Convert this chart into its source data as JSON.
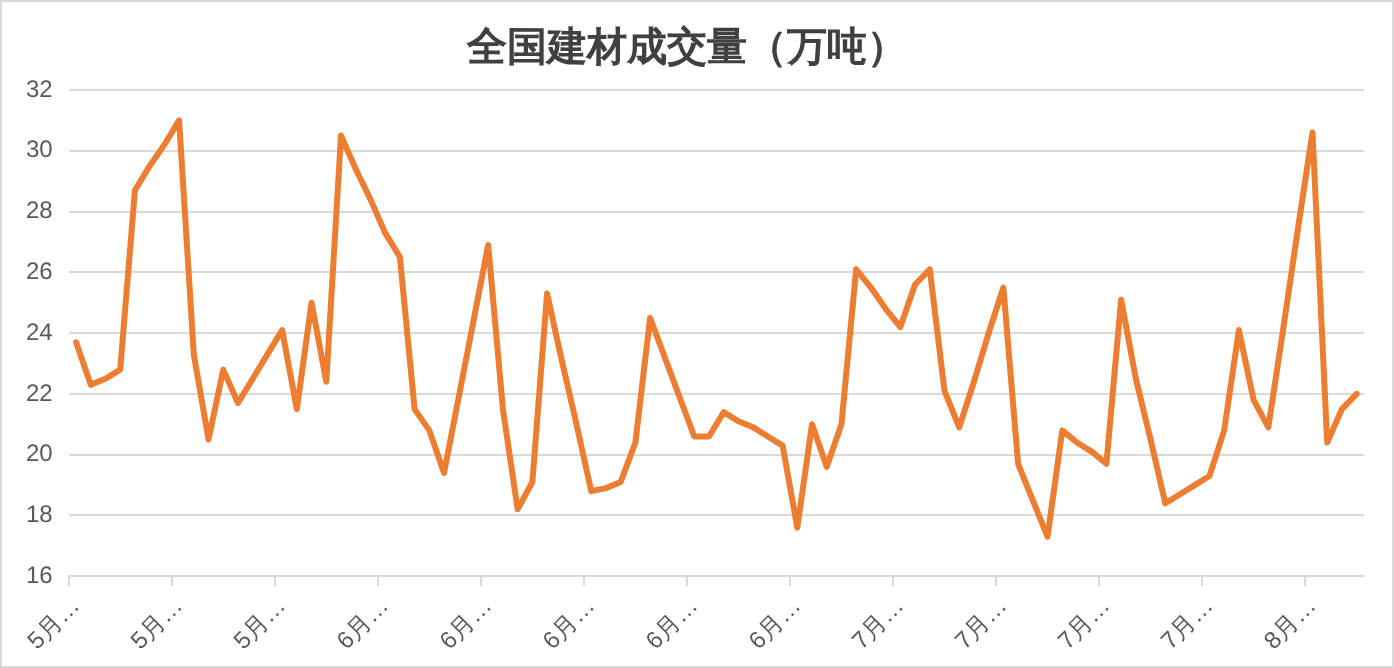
{
  "chart_data": {
    "type": "line",
    "title": "全国建材成交量（万吨）",
    "categories": [
      "5月…",
      null,
      null,
      null,
      null,
      null,
      null,
      "5月…",
      null,
      null,
      null,
      null,
      null,
      null,
      "5月…",
      null,
      null,
      null,
      null,
      null,
      null,
      "6月…",
      null,
      null,
      null,
      null,
      null,
      null,
      "6月…",
      null,
      null,
      null,
      null,
      null,
      null,
      "6月…",
      null,
      null,
      null,
      null,
      null,
      null,
      "6月…",
      null,
      null,
      null,
      null,
      null,
      null,
      "6月…",
      null,
      null,
      null,
      null,
      null,
      null,
      "7月…",
      null,
      null,
      null,
      null,
      null,
      null,
      "7月…",
      null,
      null,
      null,
      null,
      null,
      null,
      "7月…",
      null,
      null,
      null,
      null,
      null,
      null,
      "7月…",
      null,
      null,
      null,
      null,
      null,
      null,
      "8月…",
      null,
      null,
      null
    ],
    "series": [
      {
        "color": "#ed7d31",
        "values": [
          23.7,
          22.3,
          22.5,
          22.8,
          28.7,
          29.5,
          30.2,
          31.0,
          23.3,
          20.5,
          22.8,
          21.7,
          22.5,
          23.3,
          24.1,
          21.5,
          25.0,
          22.4,
          30.5,
          29.4,
          28.4,
          27.3,
          26.5,
          21.5,
          20.8,
          19.4,
          21.9,
          24.4,
          26.9,
          21.5,
          18.2,
          19.1,
          25.3,
          23.1,
          21.0,
          18.8,
          18.9,
          19.1,
          20.4,
          24.5,
          23.2,
          21.9,
          20.6,
          20.6,
          21.4,
          21.1,
          20.9,
          20.6,
          20.3,
          17.6,
          21.0,
          19.6,
          21.0,
          26.1,
          25.5,
          24.8,
          24.2,
          25.6,
          26.1,
          22.1,
          20.9,
          22.4,
          24.0,
          25.5,
          19.7,
          18.5,
          17.3,
          20.8,
          20.4,
          20.1,
          19.7,
          25.1,
          22.5,
          20.5,
          18.4,
          18.7,
          19.0,
          19.3,
          20.8,
          24.1,
          21.8,
          20.9,
          24.1,
          27.4,
          30.6,
          20.4,
          21.5,
          22.0
        ]
      }
    ],
    "ylim": [
      16,
      32
    ],
    "yticks": [
      16,
      18,
      20,
      22,
      24,
      26,
      28,
      30,
      32
    ],
    "grid": "y",
    "legend": false,
    "marker": "none",
    "line_style": "solid"
  }
}
